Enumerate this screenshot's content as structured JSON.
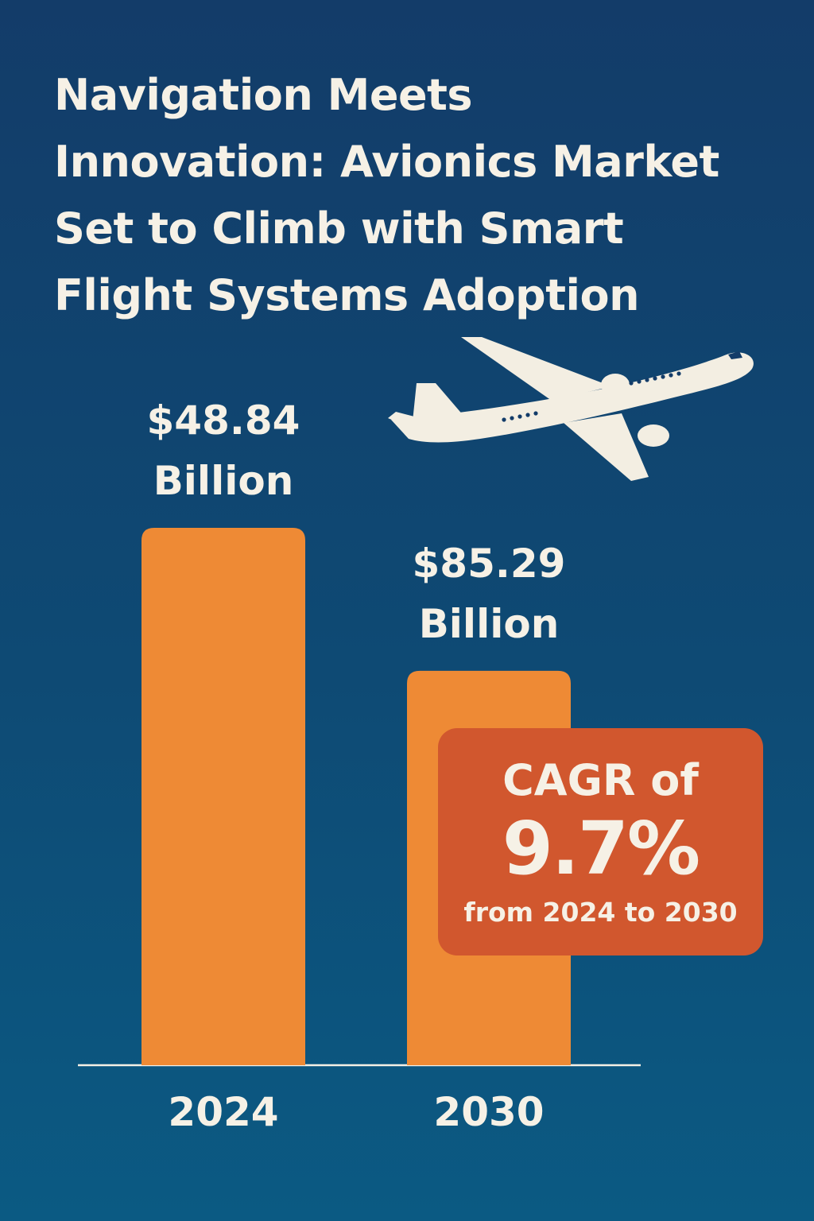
{
  "header": {
    "title_lines": [
      "Navigation Meets",
      "Innovation: Avionics Market",
      "Set to Climb with Smart",
      "Flight Systems Adoption"
    ]
  },
  "colors": {
    "background_top": "#133c69",
    "background_bottom": "#0b5a83",
    "bar": "#ee8a35",
    "callout": "#d1572e",
    "text": "#f6f1e6"
  },
  "decoration": {
    "plane_icon": "airplane-icon"
  },
  "chart_data": {
    "type": "bar",
    "categories": [
      "2024",
      "2030"
    ],
    "values": [
      48.84,
      85.29
    ],
    "value_labels": [
      [
        "$48.84",
        "Billion"
      ],
      [
        "$85.29",
        "Billion"
      ]
    ],
    "unit": "Billion",
    "currency": "$",
    "grid": false,
    "legend": "none"
  },
  "callout": {
    "line1": "CAGR of",
    "value": "9.7%",
    "period": "from 2024 to 2030"
  }
}
